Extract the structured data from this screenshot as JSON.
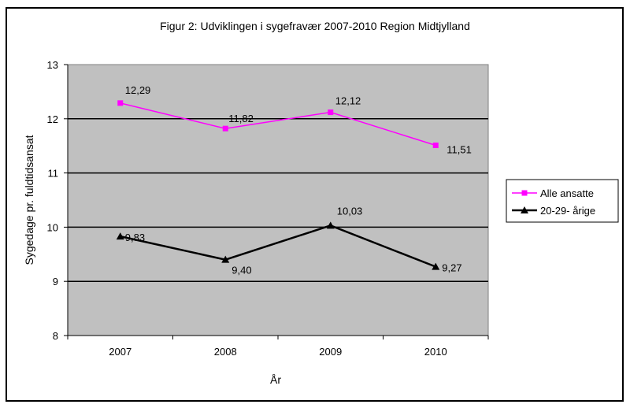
{
  "chart_data": {
    "type": "line",
    "title": "Figur 2: Udviklingen i sygefravær 2007-2010 Region Midtjylland",
    "xlabel": "År",
    "ylabel": "Sygedage pr. fuldtidsansat",
    "categories": [
      "2007",
      "2008",
      "2009",
      "2010"
    ],
    "ylim": [
      8,
      13
    ],
    "yticks": [
      "8",
      "9",
      "10",
      "11",
      "12",
      "13"
    ],
    "grid": true,
    "legend_position": "right",
    "series": [
      {
        "name": "Alle ansatte",
        "values": [
          12.29,
          11.82,
          12.12,
          11.51
        ],
        "labels": [
          "12,29",
          "11,82",
          "12,12",
          "11,51"
        ],
        "color": "#ff00ff",
        "marker": "square"
      },
      {
        "name": "20-29- årige",
        "values": [
          9.83,
          9.4,
          10.03,
          9.27
        ],
        "labels": [
          "9,83",
          "9,40",
          "10,03",
          "9,27"
        ],
        "color": "#000000",
        "marker": "triangle"
      }
    ],
    "plot_background": "#c0c0c0"
  }
}
